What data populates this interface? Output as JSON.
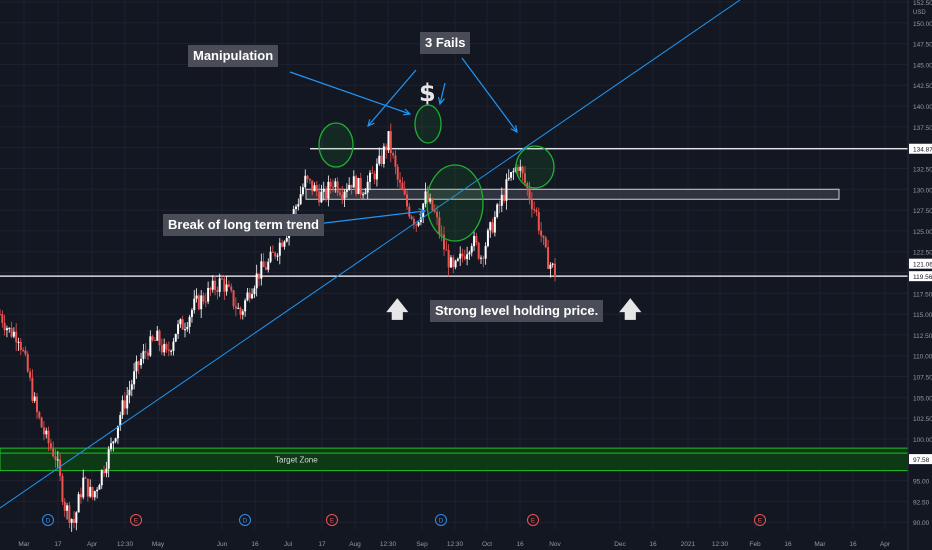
{
  "colors": {
    "background": "#131722",
    "grid": "#1e2230",
    "up_candle": "#ffffff",
    "down_candle": "#ef5350",
    "trendline": "#2196f3",
    "level_line": "#ffffff",
    "zone_stroke": "#1fbf2a",
    "zone_fill": "#0e3d14",
    "circle_stroke": "#20b030",
    "axis_text": "#9598a1",
    "label_bg": "#4a4d57"
  },
  "annotations": {
    "manipulation": "Manipulation",
    "three_fails": "3 Fails",
    "dollar": "$",
    "break_trend": "Break of long term trend",
    "strong_level": "Strong level holding price.",
    "target_zone": "Target Zone",
    "up_arrow": "🡅"
  },
  "chart_data": {
    "type": "candlestick",
    "yaxis": {
      "range": [
        87.5,
        152.5
      ],
      "currency": "USD",
      "ticks": [
        "152.50",
        "150.00",
        "147.50",
        "145.00",
        "142.50",
        "140.00",
        "137.50",
        "134.87",
        "132.50",
        "130.00",
        "127.50",
        "125.00",
        "122.50",
        "121.06",
        "119.56",
        "117.50",
        "115.00",
        "112.50",
        "110.00",
        "107.50",
        "105.00",
        "102.50",
        "100.00",
        "97.58",
        "95.00",
        "92.50",
        "90.00"
      ]
    },
    "xaxis": {
      "ticks": [
        "Mar",
        "17",
        "Apr",
        "12:30",
        "May",
        "Jun",
        "16",
        "Jul",
        "17",
        "Aug",
        "12:30",
        "Sep",
        "12:30",
        "Oct",
        "16",
        "Nov",
        "Dec",
        "16",
        "2021",
        "12:30",
        "Feb",
        "16",
        "Mar",
        "16",
        "Apr"
      ]
    },
    "price_labels": [
      "134.87",
      "121.06",
      "119.56",
      "97.58"
    ],
    "levels": {
      "resistance": 134.87,
      "support": 119.56
    },
    "resistance_box": [
      128.8,
      130.0
    ],
    "target_zone": [
      96.2,
      98.9
    ],
    "event_markers": [
      "D",
      "E",
      "D",
      "E",
      "D",
      "E",
      "E"
    ],
    "candles": {
      "start_date": "2020-02-25",
      "end_date": "2020-10-30",
      "closes": [
        115,
        113,
        112.5,
        108,
        103,
        100,
        98,
        92,
        90,
        95,
        93,
        96,
        99,
        103,
        106,
        109,
        111,
        112,
        110,
        113,
        114,
        116,
        117,
        118,
        119,
        117,
        115,
        118,
        120,
        121,
        123,
        125,
        128,
        131,
        130,
        129,
        131,
        130,
        131,
        130,
        131,
        133,
        136,
        131,
        128,
        126,
        129,
        127,
        123,
        120,
        122,
        124,
        122,
        125,
        128,
        131,
        133,
        130,
        127,
        122,
        120
      ]
    }
  }
}
